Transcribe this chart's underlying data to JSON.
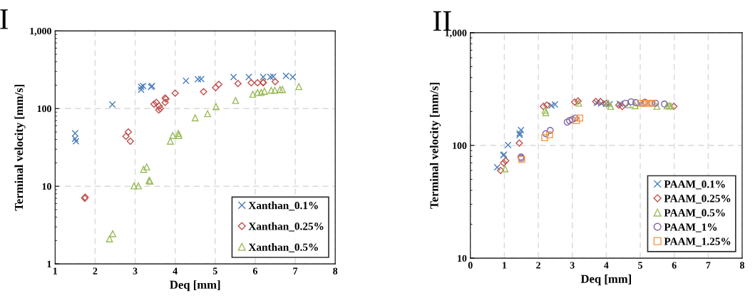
{
  "chart_data": [
    {
      "type": "scatter",
      "title": "I",
      "xlabel": "Deq [mm]",
      "ylabel": "Terminal velocity [mm/s]",
      "log": "y",
      "grid": true,
      "legend": "bottom right",
      "xlim": [
        1,
        8
      ],
      "xticks": [
        1,
        2,
        3,
        4,
        5,
        6,
        7,
        8
      ],
      "ylim": [
        1,
        1000
      ],
      "yticks": [
        1,
        10,
        100,
        {
          "value": 1000,
          "label": "1,000"
        }
      ],
      "series": [
        {
          "name": "Xanthan_0.1%",
          "color": "#4a7ebb",
          "marker": "cross",
          "x": [
            1.5,
            1.5,
            1.52,
            2.43,
            3.15,
            3.15,
            3.2,
            3.4,
            3.42,
            4.27,
            4.57,
            4.65,
            5.46,
            5.84,
            6.2,
            6.38,
            6.45,
            6.77,
            6.94
          ],
          "values": [
            48,
            41,
            38,
            113,
            190,
            175,
            195,
            190,
            195,
            228,
            239,
            240,
            255,
            255,
            255,
            255,
            258,
            264,
            255
          ]
        },
        {
          "name": "Xanthan_0.25%",
          "color": "#c0504d",
          "marker": "diamond",
          "x": [
            1.75,
            1.74,
            2.77,
            2.83,
            2.88,
            3.47,
            3.53,
            3.6,
            3.59,
            3.63,
            3.75,
            3.77,
            3.75,
            4.0,
            4.71,
            5.01,
            5.09,
            5.57,
            5.9,
            6.06,
            6.2,
            6.2,
            6.5
          ],
          "values": [
            7.2,
            7.0,
            44,
            50,
            38,
            114,
            120,
            108,
            96,
            100,
            120,
            133,
            137,
            158,
            165,
            186,
            205,
            210,
            215,
            215,
            218,
            215,
            222
          ]
        },
        {
          "name": "Xanthan_0.5%",
          "color": "#9bbb59",
          "marker": "triangle",
          "x": [
            2.36,
            2.44,
            2.97,
            3.08,
            3.21,
            3.29,
            3.35,
            3.37,
            3.88,
            3.94,
            4.08,
            4.09,
            4.5,
            4.81,
            5.02,
            5.51,
            5.94,
            6.06,
            6.15,
            6.23,
            6.4,
            6.49,
            6.62,
            6.68,
            7.09
          ],
          "values": [
            2.1,
            2.45,
            10.1,
            10.1,
            16.5,
            17.7,
            11.9,
            11.6,
            38,
            45,
            48,
            45,
            76,
            86,
            106,
            127,
            153,
            161,
            161,
            167,
            172,
            172,
            176,
            176,
            192
          ]
        }
      ]
    },
    {
      "type": "scatter",
      "title": "II",
      "xlabel": "Deq [mm]",
      "ylabel": "Terminal velocity [mm/s]",
      "log": "y",
      "grid": true,
      "legend": "bottom right",
      "xlim": [
        0,
        8
      ],
      "xticks": [
        0,
        1,
        2,
        3,
        4,
        5,
        6,
        7,
        8
      ],
      "ylim": [
        10,
        1000
      ],
      "yticks": [
        10,
        100,
        {
          "value": 1000,
          "label": "1,000"
        }
      ],
      "series": [
        {
          "name": "PAAM_0.1%",
          "color": "#4a7ebb",
          "marker": "cross",
          "x": [
            0.79,
            0.97,
            0.99,
            1.11,
            1.45,
            1.49,
            1.45,
            2.39,
            2.49,
            3.72,
            3.85,
            4.0,
            4.1,
            4.4,
            5.0
          ],
          "values": [
            64,
            82,
            83,
            101,
            124,
            137,
            128,
            226,
            231,
            239,
            236,
            234,
            232,
            234,
            233
          ]
        },
        {
          "name": "PAAM_0.25%",
          "color": "#c0504d",
          "marker": "diamond",
          "x": [
            0.89,
            0.98,
            1.04,
            1.44,
            2.15,
            2.25,
            3.07,
            3.17,
            3.69,
            3.83,
            4.0,
            4.37,
            4.47,
            5.99
          ],
          "values": [
            60,
            70,
            73,
            105,
            222,
            228,
            243,
            248,
            245,
            245,
            236,
            228,
            222,
            222
          ]
        },
        {
          "name": "PAAM_0.5%",
          "color": "#9bbb59",
          "marker": "triangle",
          "x": [
            1.02,
            2.2,
            2.22,
            3.19,
            4.05,
            4.13,
            4.65,
            4.85,
            5.49,
            5.79,
            5.85,
            5.9
          ],
          "values": [
            62,
            205,
            195,
            237,
            237,
            222,
            230,
            225,
            222,
            225,
            225,
            224
          ]
        },
        {
          "name": "PAAM_1%",
          "color": "#8064a2",
          "marker": "circle",
          "x": [
            1.49,
            1.5,
            2.22,
            2.35,
            2.85,
            2.92,
            3.0,
            3.09,
            4.57,
            4.73,
            4.87,
            5.14,
            5.35,
            5.45,
            5.71
          ],
          "values": [
            79,
            77,
            127,
            136,
            161,
            166,
            170,
            175,
            237,
            244,
            240,
            242,
            237,
            237,
            233
          ]
        },
        {
          "name": "PAAM_1.25%",
          "color": "#f79646",
          "marker": "square",
          "x": [
            1.51,
            2.19,
            2.33,
            3.12,
            3.22,
            5.02,
            5.1,
            5.18,
            5.25,
            5.32
          ],
          "values": [
            75,
            117,
            124,
            166,
            175,
            237,
            237,
            237,
            237,
            237
          ]
        }
      ]
    }
  ]
}
